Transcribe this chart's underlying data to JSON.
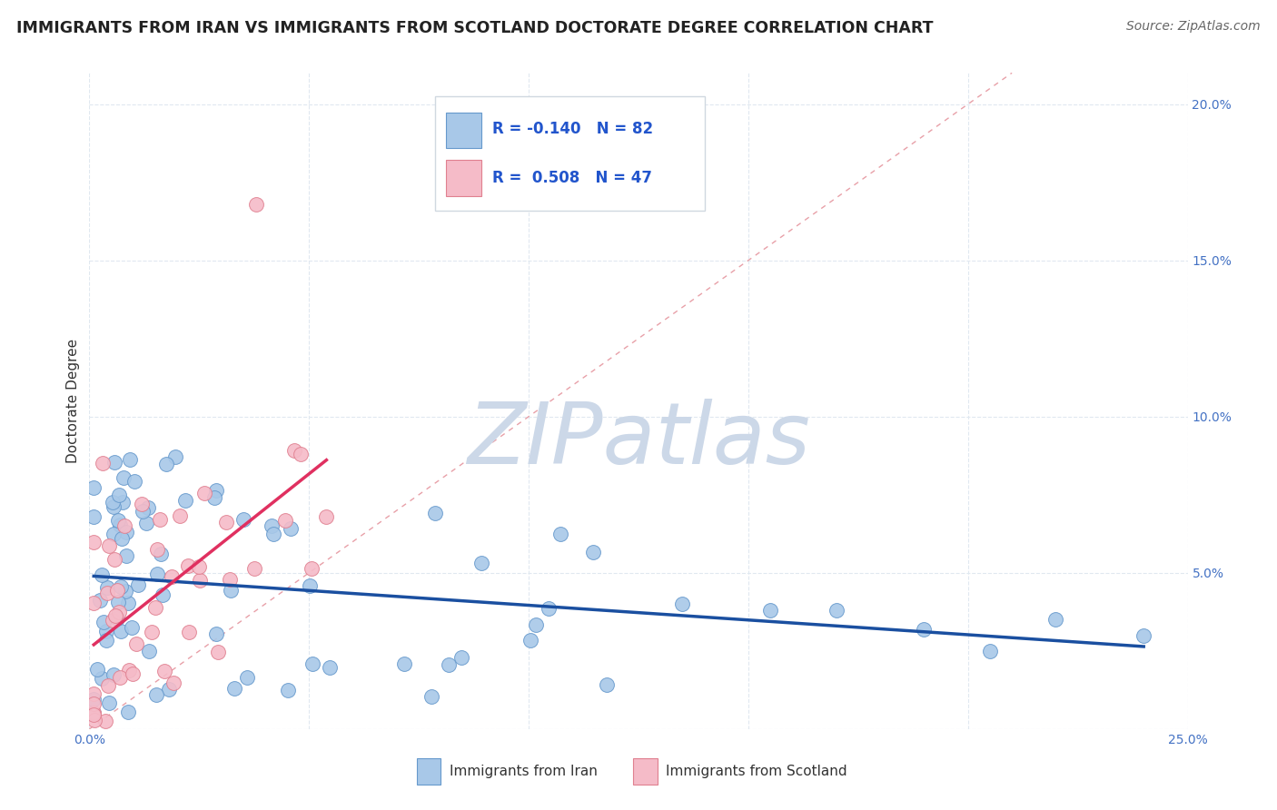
{
  "title": "IMMIGRANTS FROM IRAN VS IMMIGRANTS FROM SCOTLAND DOCTORATE DEGREE CORRELATION CHART",
  "source": "Source: ZipAtlas.com",
  "ylabel": "Doctorate Degree",
  "xlim": [
    0.0,
    0.25
  ],
  "ylim": [
    0.0,
    0.21
  ],
  "x_ticks": [
    0.0,
    0.05,
    0.1,
    0.15,
    0.2,
    0.25
  ],
  "y_ticks": [
    0.0,
    0.05,
    0.1,
    0.15,
    0.2
  ],
  "y_tick_labels": [
    "",
    "5.0%",
    "10.0%",
    "15.0%",
    "20.0%"
  ],
  "legend_label_iran": "Immigrants from Iran",
  "legend_label_scotland": "Immigrants from Scotland",
  "iran_color": "#a8c8e8",
  "iran_edge_color": "#6699cc",
  "scotland_color": "#f5bbc8",
  "scotland_edge_color": "#e08090",
  "iran_trend_color": "#1a4fa0",
  "scotland_trend_color": "#e03060",
  "diagonal_color": "#e8a0a8",
  "watermark_color": "#ccd8e8",
  "title_color": "#222222",
  "source_color": "#666666",
  "axis_label_color": "#333333",
  "tick_label_color_right": "#4472c4",
  "tick_label_color_bottom": "#4472c4",
  "grid_color": "#e0e8f0",
  "iran_R": -0.14,
  "iran_N": 82,
  "scotland_R": 0.508,
  "scotland_N": 47
}
